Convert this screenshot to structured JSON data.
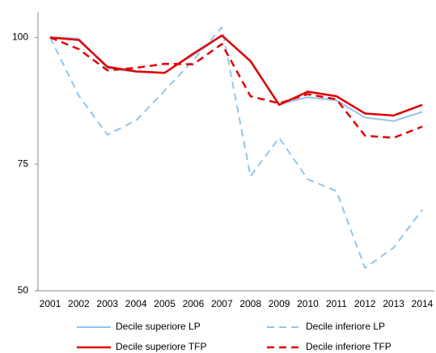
{
  "chart_data": {
    "type": "line",
    "x": [
      "2001",
      "2002",
      "2003",
      "2004",
      "2005",
      "2006",
      "2007",
      "2008",
      "2009",
      "2010",
      "2011",
      "2012",
      "2013",
      "2014"
    ],
    "series": [
      {
        "name": "Decile superiore LP",
        "color": "#92c5ec",
        "dash": false,
        "values": [
          100,
          99.8,
          93.9,
          93.2,
          93.1,
          96.5,
          100.3,
          95.5,
          86.8,
          88.2,
          87.6,
          84.2,
          83.5,
          85.3
        ]
      },
      {
        "name": "Decile inferiore LP",
        "color": "#92c5ec",
        "dash": true,
        "values": [
          100,
          88.5,
          80.8,
          83.6,
          89.5,
          95.5,
          102,
          72.6,
          80.2,
          72,
          69.7,
          54.5,
          58.5,
          66
        ]
      },
      {
        "name": "Decile superiore TFP",
        "color": "#e00000",
        "dash": false,
        "values": [
          100,
          99.5,
          94.2,
          93.3,
          93.0,
          96.8,
          100.4,
          95.3,
          86.7,
          89.3,
          88.4,
          85.0,
          84.6,
          86.7
        ]
      },
      {
        "name": "Decile inferiore TFP",
        "color": "#e00000",
        "dash": true,
        "values": [
          100,
          97.7,
          93.5,
          94.0,
          94.8,
          94.7,
          98.7,
          88.4,
          87.0,
          88.8,
          87.8,
          80.6,
          80.2,
          82.4
        ]
      }
    ],
    "ylim": [
      50,
      105
    ],
    "yticks": [
      50,
      75,
      100
    ],
    "grid": false
  }
}
